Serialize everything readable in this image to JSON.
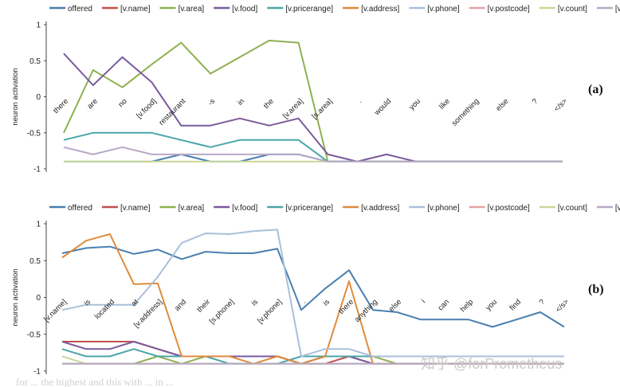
{
  "legend": [
    "offered",
    "[v.name]",
    "[v.area]",
    "[v.food]",
    "[v.pricerange]",
    "[v.address]",
    "[v.phone]",
    "[v.postcode]",
    "[v.count]",
    "[v.dontcare]"
  ],
  "colors": [
    "#4a7fb0",
    "#c0504d",
    "#8fb050",
    "#7a5a9c",
    "#4aa6a8",
    "#e08a3c",
    "#a9c0da",
    "#e4a3a6",
    "#c9d79a",
    "#b7a8c6"
  ],
  "watermark": "知乎 @forPrometheus",
  "caption_fragment": "for ... the highest and this with ... in ...",
  "chart_data": [
    {
      "type": "line",
      "label": "(a)",
      "ylabel": "neuron activation",
      "ylim": [
        -1,
        1
      ],
      "yticks": [
        "1",
        "0.5",
        "0",
        "-0.5",
        "-1"
      ],
      "categories": [
        "there",
        "are",
        "no",
        "[v.food]",
        "restaurant",
        "-s",
        "in",
        "the",
        "[v.area]",
        "[s.area]",
        ".",
        "would",
        "you",
        "like",
        "something",
        "else",
        "?",
        "</s>"
      ],
      "series": [
        {
          "name": "offered",
          "values": [
            -0.9,
            -0.9,
            -0.9,
            -0.9,
            -0.8,
            -0.9,
            -0.9,
            -0.8,
            -0.8,
            -0.9,
            -0.9,
            -0.9,
            -0.9,
            -0.9,
            -0.9,
            -0.9,
            -0.9,
            -0.9
          ]
        },
        {
          "name": "[v.area]",
          "values": [
            -0.5,
            0.37,
            0.13,
            0.45,
            0.75,
            0.32,
            0.55,
            0.78,
            0.75,
            -0.9,
            -0.9,
            -0.9,
            -0.9,
            -0.9,
            -0.9,
            -0.9,
            -0.9,
            -0.9
          ]
        },
        {
          "name": "[v.food]",
          "values": [
            0.6,
            0.16,
            0.55,
            0.2,
            -0.4,
            -0.4,
            -0.3,
            -0.4,
            -0.3,
            -0.8,
            -0.9,
            -0.8,
            -0.9,
            -0.9,
            -0.9,
            -0.9,
            -0.9,
            -0.9
          ]
        },
        {
          "name": "[v.pricerange]",
          "values": [
            -0.6,
            -0.5,
            -0.5,
            -0.5,
            -0.6,
            -0.7,
            -0.6,
            -0.6,
            -0.6,
            -0.9,
            -0.9,
            -0.9,
            -0.9,
            -0.9,
            -0.9,
            -0.9,
            -0.9,
            -0.9
          ]
        },
        {
          "name": "[v.count]",
          "values": [
            -0.9,
            -0.9,
            -0.9,
            -0.9,
            -0.9,
            -0.9,
            -0.9,
            -0.9,
            -0.9,
            -0.9,
            -0.9,
            -0.9,
            -0.9,
            -0.9,
            -0.9,
            -0.9,
            -0.9,
            -0.9
          ]
        },
        {
          "name": "[v.dontcare]",
          "values": [
            -0.7,
            -0.8,
            -0.7,
            -0.8,
            -0.8,
            -0.8,
            -0.8,
            -0.8,
            -0.8,
            -0.9,
            -0.9,
            -0.9,
            -0.9,
            -0.9,
            -0.9,
            -0.9,
            -0.9,
            -0.9
          ]
        }
      ]
    },
    {
      "type": "line",
      "label": "(b)",
      "ylabel": "neuron activation",
      "ylim": [
        -1,
        1
      ],
      "yticks": [
        "1",
        "0.5",
        "0",
        "-0.5",
        "-1"
      ],
      "categories": [
        "[v.name]",
        "is",
        "located",
        "at",
        "[v.address]",
        "and",
        "their",
        "[s.phone]",
        "is",
        "[v.phone]",
        ".",
        "is",
        "there",
        "anything",
        "else",
        "i",
        "can",
        "help",
        "you",
        "find",
        "?",
        "</s>"
      ],
      "series": [
        {
          "name": "offered",
          "values": [
            0.6,
            0.67,
            0.69,
            0.59,
            0.65,
            0.52,
            0.62,
            0.6,
            0.6,
            0.66,
            -0.17,
            0.12,
            0.37,
            -0.17,
            -0.2,
            -0.3,
            -0.3,
            -0.3,
            -0.4,
            -0.3,
            -0.2,
            -0.4
          ]
        },
        {
          "name": "[v.name]",
          "values": [
            -0.6,
            -0.6,
            -0.6,
            -0.6,
            -0.7,
            -0.8,
            -0.8,
            -0.8,
            -0.8,
            -0.8,
            -0.9,
            -0.9,
            -0.8,
            -0.9,
            -0.9,
            -0.9,
            -0.9,
            -0.9,
            -0.9,
            -0.9,
            -0.9,
            -0.9
          ]
        },
        {
          "name": "[v.area]",
          "values": [
            -0.9,
            -0.9,
            -0.9,
            -0.9,
            -0.8,
            -0.9,
            -0.8,
            -0.8,
            -0.8,
            -0.8,
            -0.9,
            -0.8,
            -0.8,
            -0.8,
            -0.9,
            -0.9,
            -0.9,
            -0.9,
            -0.9,
            -0.9,
            -0.9,
            -0.9
          ]
        },
        {
          "name": "[v.food]",
          "values": [
            -0.6,
            -0.7,
            -0.7,
            -0.6,
            -0.7,
            -0.8,
            -0.8,
            -0.8,
            -0.8,
            -0.8,
            -0.9,
            -0.8,
            -0.8,
            -0.9,
            -0.9,
            -0.9,
            -0.9,
            -0.9,
            -0.9,
            -0.9,
            -0.9,
            -0.9
          ]
        },
        {
          "name": "[v.pricerange]",
          "values": [
            -0.7,
            -0.8,
            -0.8,
            -0.7,
            -0.8,
            -0.8,
            -0.8,
            -0.9,
            -0.9,
            -0.9,
            -0.8,
            -0.8,
            -0.8,
            -0.8,
            -0.8,
            -0.8,
            -0.8,
            -0.8,
            -0.8,
            -0.8,
            -0.8,
            -0.8
          ]
        },
        {
          "name": "[v.address]",
          "values": [
            0.54,
            0.77,
            0.86,
            0.18,
            0.19,
            -0.8,
            -0.8,
            -0.8,
            -0.9,
            -0.8,
            -0.9,
            -0.8,
            0.22,
            -0.9,
            -0.9,
            -0.9,
            -0.9,
            -0.9,
            -0.9,
            -0.9,
            -0.9,
            -0.9
          ]
        },
        {
          "name": "[v.phone]",
          "values": [
            -0.17,
            -0.1,
            -0.1,
            -0.1,
            0.28,
            0.74,
            0.87,
            0.86,
            0.9,
            0.92,
            -0.8,
            -0.7,
            -0.7,
            -0.8,
            -0.8,
            -0.8,
            -0.8,
            -0.8,
            -0.8,
            -0.8,
            -0.8,
            -0.8
          ]
        },
        {
          "name": "[v.count]",
          "values": [
            -0.8,
            -0.9,
            -0.9,
            -0.9,
            -0.9,
            -0.9,
            -0.9,
            -0.9,
            -0.9,
            -0.9,
            -0.9,
            -0.9,
            -0.9,
            -0.9,
            -0.9,
            -0.9,
            -0.9,
            -0.9,
            -0.9,
            -0.9,
            -0.9,
            -0.9
          ]
        },
        {
          "name": "[v.dontcare]",
          "values": [
            -0.9,
            -0.9,
            -0.9,
            -0.9,
            -0.9,
            -0.9,
            -0.9,
            -0.9,
            -0.9,
            -0.9,
            -0.9,
            -0.9,
            -0.9,
            -0.9,
            -0.9,
            -0.9,
            -0.9,
            -0.9,
            -0.9,
            -0.9,
            -0.9,
            -0.9
          ]
        }
      ]
    }
  ]
}
